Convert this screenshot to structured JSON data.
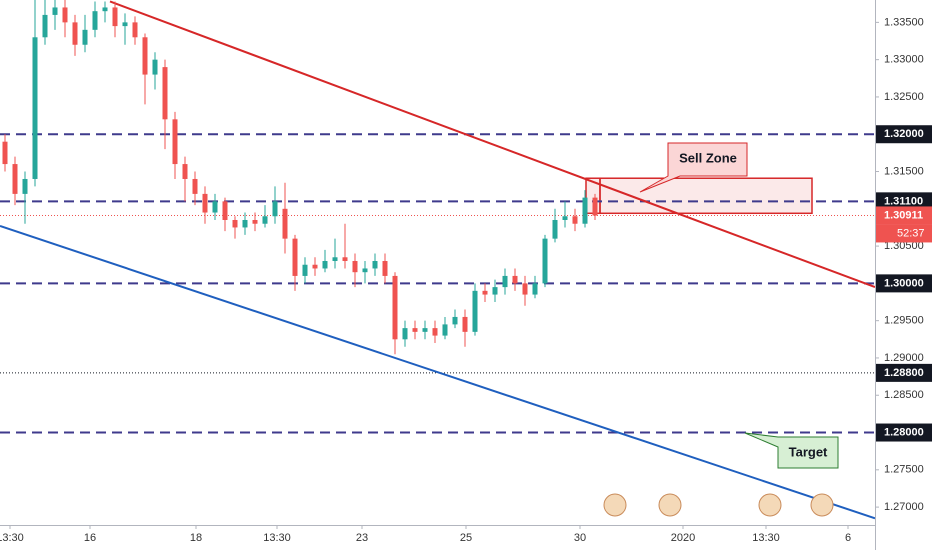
{
  "chart_data": {
    "type": "candlestick",
    "up_color": "#26a69a",
    "down_color": "#ef5350",
    "open": [
      1.319,
      1.316,
      1.312,
      1.314,
      1.333,
      1.336,
      1.337,
      1.335,
      1.332,
      1.334,
      1.3365,
      1.337,
      1.3345,
      1.335,
      1.333,
      1.328,
      1.329,
      1.322,
      1.316,
      1.314,
      1.312,
      1.3095,
      1.311,
      1.3085,
      1.3075,
      1.3085,
      1.308,
      1.309,
      1.31,
      1.306,
      1.301,
      1.3025,
      1.302,
      1.303,
      1.3035,
      1.303,
      1.3015,
      1.302,
      1.303,
      1.301,
      1.2925,
      1.294,
      1.2935,
      1.294,
      1.293,
      1.2945,
      1.2955,
      1.2935,
      1.299,
      1.2985,
      1.2995,
      1.301,
      1.3,
      1.2985,
      1.3,
      1.306,
      1.3085,
      1.309,
      1.308,
      1.3115
    ],
    "high": [
      1.32,
      1.317,
      1.315,
      1.338,
      1.338,
      1.338,
      1.338,
      1.336,
      1.336,
      1.3378,
      1.3378,
      1.3378,
      1.3362,
      1.3358,
      1.3335,
      1.331,
      1.33,
      1.323,
      1.317,
      1.315,
      1.313,
      1.312,
      1.3115,
      1.309,
      1.3095,
      1.3095,
      1.3105,
      1.313,
      1.3135,
      1.3065,
      1.3035,
      1.3035,
      1.3045,
      1.306,
      1.308,
      1.304,
      1.303,
      1.304,
      1.304,
      1.3015,
      1.295,
      1.295,
      1.295,
      1.295,
      1.2955,
      1.2965,
      1.2965,
      1.3,
      1.3,
      1.3005,
      1.302,
      1.302,
      1.301,
      1.301,
      1.3065,
      1.31,
      1.311,
      1.31,
      1.3125,
      1.312
    ],
    "low": [
      1.315,
      1.3105,
      1.308,
      1.313,
      1.332,
      1.334,
      1.333,
      1.3305,
      1.331,
      1.333,
      1.335,
      1.333,
      1.332,
      1.332,
      1.324,
      1.326,
      1.318,
      1.314,
      1.311,
      1.3105,
      1.308,
      1.3085,
      1.307,
      1.306,
      1.3065,
      1.307,
      1.3075,
      1.308,
      1.304,
      1.299,
      1.3,
      1.301,
      1.3015,
      1.302,
      1.302,
      1.2995,
      1.3,
      1.301,
      1.3,
      1.2905,
      1.2915,
      1.2925,
      1.2925,
      1.292,
      1.2925,
      1.294,
      1.2915,
      1.293,
      1.2975,
      1.2975,
      1.2985,
      1.299,
      1.297,
      1.298,
      1.2995,
      1.3055,
      1.3075,
      1.307,
      1.3075,
      1.3085
    ],
    "close": [
      1.316,
      1.312,
      1.314,
      1.333,
      1.336,
      1.337,
      1.335,
      1.332,
      1.334,
      1.3365,
      1.337,
      1.3345,
      1.335,
      1.333,
      1.328,
      1.33,
      1.322,
      1.316,
      1.314,
      1.312,
      1.3095,
      1.311,
      1.3085,
      1.3075,
      1.3085,
      1.308,
      1.309,
      1.311,
      1.306,
      1.301,
      1.3025,
      1.302,
      1.303,
      1.3035,
      1.303,
      1.3015,
      1.302,
      1.303,
      1.301,
      1.2925,
      1.294,
      1.2935,
      1.294,
      1.293,
      1.2945,
      1.2955,
      1.2935,
      1.299,
      1.2985,
      1.2995,
      1.301,
      1.3,
      1.2985,
      1.3,
      1.306,
      1.3085,
      1.309,
      1.308,
      1.3115,
      1.3091
    ],
    "xlim": [
      0,
      87.5
    ],
    "ylim": [
      1.2676,
      1.338
    ],
    "xticks": [
      {
        "value": 1,
        "label": "13:30"
      },
      {
        "value": 9,
        "label": "16"
      },
      {
        "value": 19.6,
        "label": "18"
      },
      {
        "value": 27.7,
        "label": "13:30"
      },
      {
        "value": 36.2,
        "label": "23"
      },
      {
        "value": 46.6,
        "label": "25"
      },
      {
        "value": 58,
        "label": "30"
      },
      {
        "value": 68.3,
        "label": "2020"
      },
      {
        "value": 76.6,
        "label": "13:30"
      },
      {
        "value": 84.8,
        "label": "6"
      }
    ],
    "yticks": [
      {
        "value": 1.335,
        "label": "1.33500"
      },
      {
        "value": 1.33,
        "label": "1.33000"
      },
      {
        "value": 1.325,
        "label": "1.32500"
      },
      {
        "value": 1.315,
        "label": "1.31500"
      },
      {
        "value": 1.305,
        "label": "1.30500"
      },
      {
        "value": 1.295,
        "label": "1.29500"
      },
      {
        "value": 1.29,
        "label": "1.29000"
      },
      {
        "value": 1.285,
        "label": "1.28500"
      },
      {
        "value": 1.275,
        "label": "1.27500"
      },
      {
        "value": 1.27,
        "label": "1.27000"
      }
    ],
    "levels": [
      {
        "value": 1.32,
        "label": "1.32000",
        "color": "#3f3a8c",
        "style": "dashed",
        "tag_color": "#131722"
      },
      {
        "value": 1.311,
        "label": "1.31100",
        "color": "#3f3a8c",
        "style": "dashed",
        "tag_color": "#131722"
      },
      {
        "value": 1.30911,
        "label": "1.30911",
        "color": "#ef5350",
        "style": "dotted",
        "tag_color": "#ef5350"
      },
      {
        "value": 1.3,
        "label": "1.30000",
        "color": "#3f3a8c",
        "style": "dashed",
        "tag_color": "#131722"
      },
      {
        "value": 1.288,
        "label": "1.28800",
        "color": "#131722",
        "style": "dotted",
        "tag_color": "#131722"
      },
      {
        "value": 1.28,
        "label": "1.28000",
        "color": "#3f3a8c",
        "style": "dashed",
        "tag_color": "#131722"
      }
    ],
    "countdown": "52:37",
    "trend_lines": [
      {
        "color": "#d62728",
        "points": [
          [
            11,
            1.3378
          ],
          [
            87.5,
            1.2995
          ]
        ]
      },
      {
        "color": "#1f5fbf",
        "points": [
          [
            0,
            1.3077
          ],
          [
            87.5,
            1.2685
          ]
        ]
      }
    ],
    "zones": [
      {
        "x": [
          58.6,
          60
        ],
        "y": [
          1.3094,
          1.3141
        ],
        "color": "#d62728"
      },
      {
        "x": [
          60,
          81.2
        ],
        "y": [
          1.3094,
          1.3141
        ],
        "color": "#d62728"
      }
    ],
    "annotations": [
      "Sell Zone",
      "Target"
    ]
  }
}
